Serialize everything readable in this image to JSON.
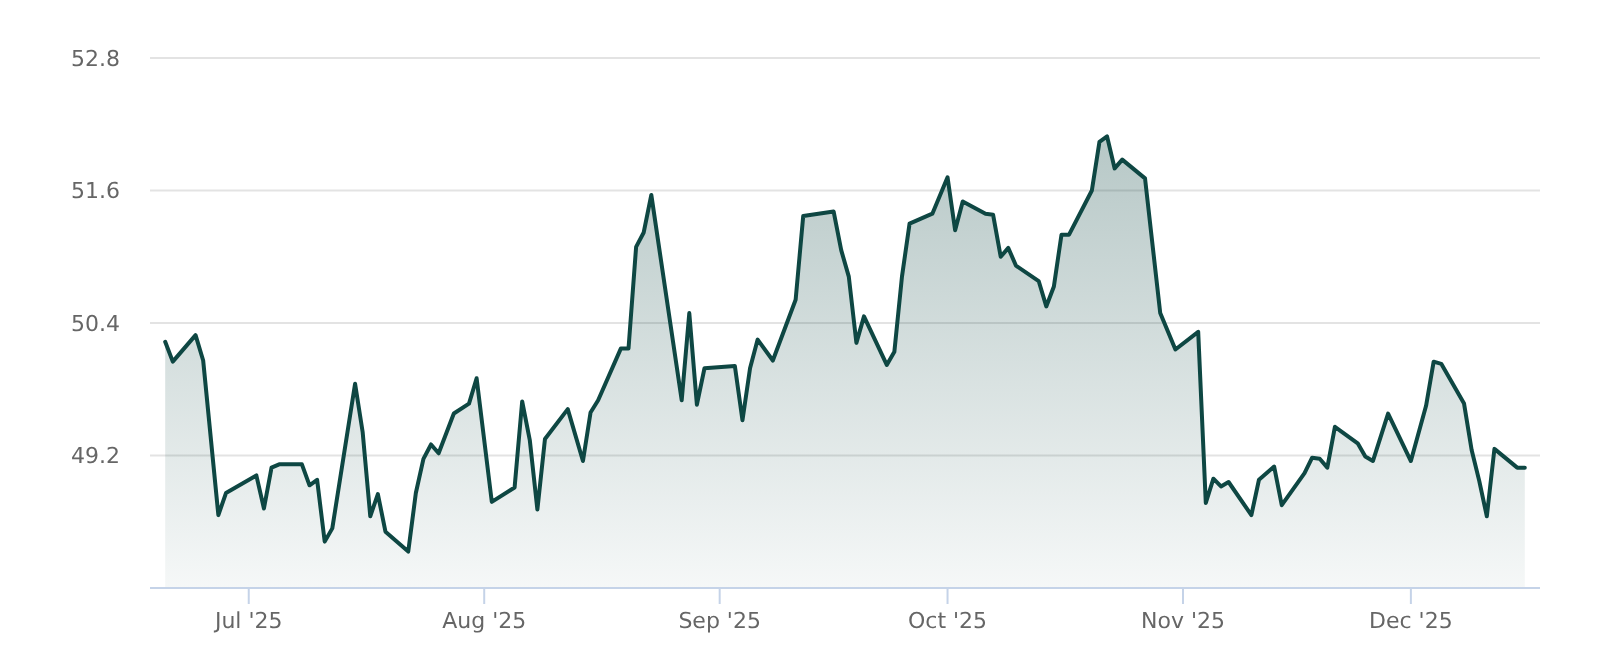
{
  "chart_data": {
    "type": "area",
    "x": [
      "2025-06-20",
      "2025-06-21",
      "2025-06-24",
      "2025-06-25",
      "2025-06-27",
      "2025-06-28",
      "2025-07-02",
      "2025-07-03",
      "2025-07-04",
      "2025-07-05",
      "2025-07-08",
      "2025-07-09",
      "2025-07-10",
      "2025-07-11",
      "2025-07-12",
      "2025-07-15",
      "2025-07-16",
      "2025-07-17",
      "2025-07-18",
      "2025-07-19",
      "2025-07-22",
      "2025-07-23",
      "2025-07-24",
      "2025-07-25",
      "2025-07-26",
      "2025-07-28",
      "2025-07-30",
      "2025-07-31",
      "2025-08-02",
      "2025-08-05",
      "2025-08-06",
      "2025-08-07",
      "2025-08-08",
      "2025-08-09",
      "2025-08-12",
      "2025-08-14",
      "2025-08-15",
      "2025-08-16",
      "2025-08-19",
      "2025-08-20",
      "2025-08-21",
      "2025-08-22",
      "2025-08-23",
      "2025-08-27",
      "2025-08-28",
      "2025-08-29",
      "2025-08-30",
      "2025-09-03",
      "2025-09-04",
      "2025-09-05",
      "2025-09-06",
      "2025-09-08",
      "2025-09-11",
      "2025-09-12",
      "2025-09-16",
      "2025-09-17",
      "2025-09-18",
      "2025-09-19",
      "2025-09-20",
      "2025-09-23",
      "2025-09-24",
      "2025-09-25",
      "2025-09-26",
      "2025-09-29",
      "2025-10-01",
      "2025-10-02",
      "2025-10-03",
      "2025-10-06",
      "2025-10-07",
      "2025-10-08",
      "2025-10-09",
      "2025-10-10",
      "2025-10-13",
      "2025-10-14",
      "2025-10-15",
      "2025-10-16",
      "2025-10-17",
      "2025-10-20",
      "2025-10-21",
      "2025-10-22",
      "2025-10-23",
      "2025-10-24",
      "2025-10-27",
      "2025-10-29",
      "2025-10-31",
      "2025-11-03",
      "2025-11-04",
      "2025-11-05",
      "2025-11-06",
      "2025-11-07",
      "2025-11-10",
      "2025-11-11",
      "2025-11-13",
      "2025-11-14",
      "2025-11-17",
      "2025-11-18",
      "2025-11-19",
      "2025-11-20",
      "2025-11-21",
      "2025-11-24",
      "2025-11-25",
      "2025-11-26",
      "2025-11-28",
      "2025-12-01",
      "2025-12-03",
      "2025-12-04",
      "2025-12-05",
      "2025-12-08",
      "2025-12-09",
      "2025-12-10",
      "2025-12-11",
      "2025-12-12",
      "2025-12-15",
      "2025-12-16"
    ],
    "series": [
      {
        "color": "#0e4743",
        "values": [
          50.23,
          50.05,
          50.29,
          50.06,
          48.66,
          48.86,
          49.02,
          48.72,
          49.09,
          49.12,
          49.12,
          48.93,
          48.98,
          48.42,
          48.54,
          49.85,
          49.41,
          48.65,
          48.85,
          48.51,
          48.33,
          48.86,
          49.17,
          49.3,
          49.22,
          49.58,
          49.67,
          49.9,
          48.78,
          48.91,
          49.69,
          49.34,
          48.71,
          49.35,
          49.62,
          49.15,
          49.59,
          49.7,
          50.17,
          50.17,
          51.09,
          51.22,
          51.56,
          49.7,
          50.49,
          49.66,
          49.99,
          50.01,
          49.52,
          49.99,
          50.25,
          50.06,
          50.61,
          51.37,
          51.41,
          51.06,
          50.82,
          50.22,
          50.46,
          50.02,
          50.14,
          50.82,
          51.3,
          51.39,
          51.72,
          51.24,
          51.5,
          51.39,
          51.38,
          51.0,
          51.08,
          50.92,
          50.78,
          50.55,
          50.73,
          51.2,
          51.2,
          51.6,
          52.04,
          52.09,
          51.8,
          51.88,
          51.71,
          50.49,
          50.16,
          50.32,
          48.77,
          48.99,
          48.92,
          48.96,
          48.66,
          48.98,
          49.1,
          48.75,
          49.04,
          49.18,
          49.17,
          49.09,
          49.46,
          49.31,
          49.19,
          49.15,
          49.58,
          49.15,
          49.65,
          50.05,
          50.03,
          49.67,
          49.25,
          48.97,
          48.65,
          49.26,
          49.09,
          49.09
        ]
      }
    ],
    "xlim": [
      "2025-06-18",
      "2025-12-18"
    ],
    "xticks": [
      {
        "value": "2025-07-01",
        "label": "Jul '25"
      },
      {
        "value": "2025-08-01",
        "label": "Aug '25"
      },
      {
        "value": "2025-09-01",
        "label": "Sep '25"
      },
      {
        "value": "2025-10-01",
        "label": "Oct '25"
      },
      {
        "value": "2025-11-01",
        "label": "Nov '25"
      },
      {
        "value": "2025-12-01",
        "label": "Dec '25"
      }
    ],
    "ylim": [
      48,
      52.8
    ],
    "yticks": [
      49.2,
      50.4,
      51.6,
      52.8
    ],
    "grid": "y"
  }
}
